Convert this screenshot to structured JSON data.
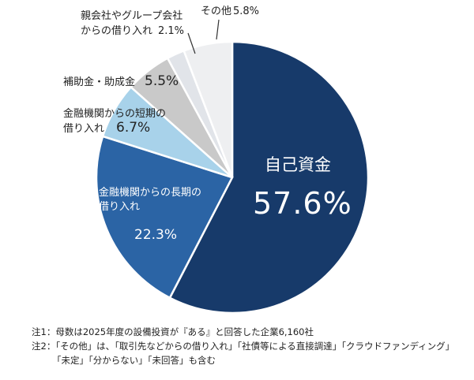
{
  "chart_data": {
    "type": "pie",
    "start": "top",
    "direction": "clockwise",
    "slices": [
      {
        "label": "自己資金",
        "value": 57.6,
        "value_label": "57.6%",
        "color": "#173a6a"
      },
      {
        "label_lines": [
          "金融機関からの長期の",
          "借り入れ"
        ],
        "value": 22.3,
        "value_label": "22.3%",
        "color": "#2b64a5"
      },
      {
        "label_lines": [
          "金融機関からの短期の",
          "借り入れ"
        ],
        "value": 6.7,
        "value_label": "6.7%",
        "color": "#a8d2ea"
      },
      {
        "label": "補助金・助成金",
        "value": 5.5,
        "value_label": "5.5%",
        "color": "#c9c9c9"
      },
      {
        "label_lines": [
          "親会社やグループ会社",
          "からの借り入れ"
        ],
        "value": 2.1,
        "value_label": "2.1%",
        "color": "#e1e4e9"
      },
      {
        "label": "その他",
        "value": 5.8,
        "value_label": "5.8%",
        "color": "#eeeff1"
      }
    ]
  },
  "notes": [
    "注1：母数は2025年度の設備投資が『ある』と回答した企業6,160社",
    "注2：「その他」は、「取引先などからの借り入れ」「社債等による直接調達」「クラウドファンディング」",
    "「未定」「分からない」「未回答」も含む"
  ]
}
